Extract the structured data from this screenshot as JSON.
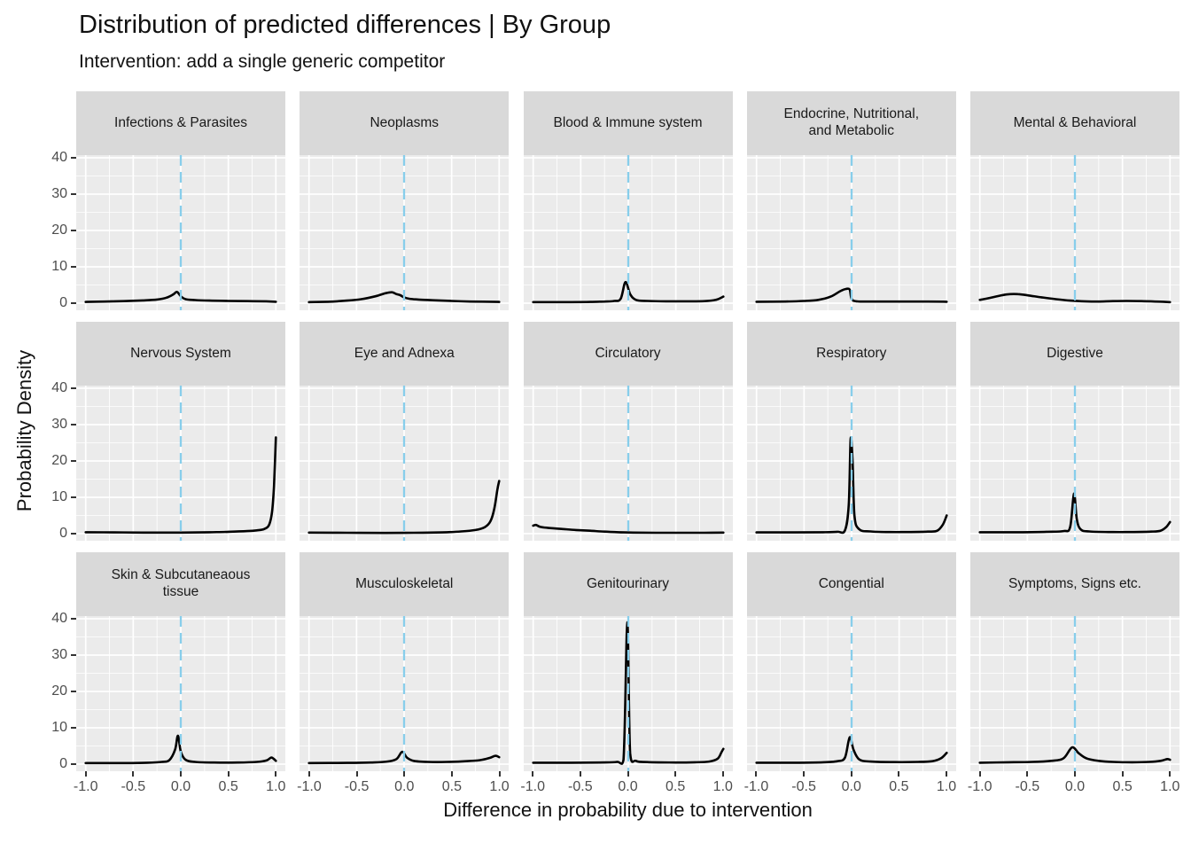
{
  "header": {
    "title": "Distribution of predicted differences | By Group",
    "subtitle": "Intervention: add a single generic competitor"
  },
  "axes": {
    "x": {
      "label": "Difference in probability due to intervention",
      "ticks": [
        -1.0,
        -0.5,
        0.0,
        0.5,
        1.0
      ],
      "tick_labels": [
        "-1.0",
        "-0.5",
        "0.0",
        "0.5",
        "1.0"
      ],
      "range": [
        -1,
        1
      ]
    },
    "y": {
      "label": "Probability Density",
      "ticks": [
        0,
        10,
        20,
        30,
        40
      ],
      "tick_labels": [
        "0",
        "10",
        "20",
        "30",
        "40"
      ],
      "range": [
        0,
        40
      ]
    }
  },
  "style": {
    "panel_bg": "#EBEBEB",
    "strip_bg": "#D9D9D9",
    "grid_color": "#FFFFFF",
    "curve_color": "#000000",
    "vline_color": "#87CEEB",
    "tick_text_color": "#4D4D4D",
    "strip_text_color": "#1A1A1A"
  },
  "chart_data": {
    "type": "line",
    "title": "Distribution of predicted differences | By Group",
    "subtitle": "Intervention: add a single generic competitor",
    "xlabel": "Difference in probability due to intervention",
    "ylabel": "Probability Density",
    "xlim": [
      -1,
      1
    ],
    "ylim": [
      0,
      40
    ],
    "grid": "on",
    "legend": "none",
    "vline_x": 0,
    "facet_layout": {
      "rows": 3,
      "cols": 5
    },
    "facets": [
      {
        "title": "Infections & Parasites",
        "points": [
          [
            -1,
            0.35
          ],
          [
            -0.8,
            0.45
          ],
          [
            -0.6,
            0.55
          ],
          [
            -0.4,
            0.75
          ],
          [
            -0.25,
            1.0
          ],
          [
            -0.15,
            1.5
          ],
          [
            -0.08,
            2.4
          ],
          [
            -0.04,
            3.1
          ],
          [
            0,
            1.9
          ],
          [
            0.05,
            1.1
          ],
          [
            0.15,
            0.85
          ],
          [
            0.3,
            0.7
          ],
          [
            0.5,
            0.6
          ],
          [
            0.7,
            0.55
          ],
          [
            0.9,
            0.5
          ],
          [
            1,
            0.4
          ]
        ]
      },
      {
        "title": "Neoplasms",
        "points": [
          [
            -1,
            0.3
          ],
          [
            -0.8,
            0.4
          ],
          [
            -0.6,
            0.7
          ],
          [
            -0.45,
            1.1
          ],
          [
            -0.3,
            1.9
          ],
          [
            -0.2,
            2.7
          ],
          [
            -0.13,
            3.0
          ],
          [
            -0.08,
            2.5
          ],
          [
            -0.04,
            2.2
          ],
          [
            0,
            1.6
          ],
          [
            0.06,
            1.2
          ],
          [
            0.15,
            1.0
          ],
          [
            0.3,
            0.8
          ],
          [
            0.5,
            0.6
          ],
          [
            0.7,
            0.45
          ],
          [
            1,
            0.35
          ]
        ]
      },
      {
        "title": "Blood & Immune system",
        "points": [
          [
            -1,
            0.3
          ],
          [
            -0.6,
            0.3
          ],
          [
            -0.4,
            0.35
          ],
          [
            -0.25,
            0.45
          ],
          [
            -0.15,
            0.6
          ],
          [
            -0.08,
            1.2
          ],
          [
            -0.03,
            5.8
          ],
          [
            0.02,
            2.5
          ],
          [
            0.08,
            0.9
          ],
          [
            0.2,
            0.6
          ],
          [
            0.4,
            0.5
          ],
          [
            0.6,
            0.5
          ],
          [
            0.8,
            0.55
          ],
          [
            0.92,
            0.9
          ],
          [
            1,
            1.8
          ]
        ]
      },
      {
        "title": "Endocrine, Nutritional,\nand Metabolic",
        "points": [
          [
            -1,
            0.4
          ],
          [
            -0.7,
            0.45
          ],
          [
            -0.5,
            0.6
          ],
          [
            -0.35,
            0.9
          ],
          [
            -0.22,
            1.8
          ],
          [
            -0.12,
            3.3
          ],
          [
            -0.06,
            3.9
          ],
          [
            -0.02,
            3.7
          ],
          [
            0,
            1.2
          ],
          [
            0.05,
            0.5
          ],
          [
            0.2,
            0.45
          ],
          [
            0.5,
            0.45
          ],
          [
            0.8,
            0.45
          ],
          [
            1,
            0.4
          ]
        ]
      },
      {
        "title": "Mental & Behavioral",
        "points": [
          [
            -1,
            0.9
          ],
          [
            -0.85,
            1.7
          ],
          [
            -0.72,
            2.4
          ],
          [
            -0.6,
            2.5
          ],
          [
            -0.48,
            2.1
          ],
          [
            -0.35,
            1.6
          ],
          [
            -0.2,
            1.1
          ],
          [
            -0.05,
            0.7
          ],
          [
            0.1,
            0.5
          ],
          [
            0.25,
            0.45
          ],
          [
            0.4,
            0.55
          ],
          [
            0.55,
            0.6
          ],
          [
            0.7,
            0.55
          ],
          [
            0.85,
            0.45
          ],
          [
            1,
            0.3
          ]
        ]
      },
      {
        "title": "Nervous System",
        "points": [
          [
            -1,
            0.4
          ],
          [
            -0.7,
            0.35
          ],
          [
            -0.4,
            0.3
          ],
          [
            0,
            0.3
          ],
          [
            0.3,
            0.4
          ],
          [
            0.5,
            0.5
          ],
          [
            0.7,
            0.7
          ],
          [
            0.8,
            0.9
          ],
          [
            0.88,
            1.3
          ],
          [
            0.93,
            2.5
          ],
          [
            0.96,
            6
          ],
          [
            0.98,
            13
          ],
          [
            1,
            26.5
          ]
        ]
      },
      {
        "title": "Eye and Adnexa",
        "points": [
          [
            -1,
            0.3
          ],
          [
            -0.6,
            0.25
          ],
          [
            -0.2,
            0.2
          ],
          [
            0.1,
            0.25
          ],
          [
            0.4,
            0.35
          ],
          [
            0.6,
            0.6
          ],
          [
            0.75,
            1.0
          ],
          [
            0.85,
            1.8
          ],
          [
            0.91,
            3.5
          ],
          [
            0.95,
            7
          ],
          [
            0.98,
            12
          ],
          [
            1,
            14.5
          ]
        ]
      },
      {
        "title": "Circulatory",
        "points": [
          [
            -1,
            2.2
          ],
          [
            -0.97,
            2.4
          ],
          [
            -0.93,
            1.9
          ],
          [
            -0.85,
            1.6
          ],
          [
            -0.7,
            1.3
          ],
          [
            -0.55,
            1.0
          ],
          [
            -0.4,
            0.8
          ],
          [
            -0.25,
            0.55
          ],
          [
            -0.1,
            0.4
          ],
          [
            0.05,
            0.3
          ],
          [
            0.3,
            0.25
          ],
          [
            0.6,
            0.25
          ],
          [
            0.8,
            0.25
          ],
          [
            1,
            0.3
          ]
        ]
      },
      {
        "title": "Respiratory",
        "points": [
          [
            -1,
            0.35
          ],
          [
            -0.6,
            0.35
          ],
          [
            -0.3,
            0.4
          ],
          [
            -0.15,
            0.5
          ],
          [
            -0.07,
            0.9
          ],
          [
            -0.03,
            8
          ],
          [
            -0.01,
            26
          ],
          [
            0.01,
            20
          ],
          [
            0.03,
            5
          ],
          [
            0.08,
            1.2
          ],
          [
            0.2,
            0.6
          ],
          [
            0.4,
            0.45
          ],
          [
            0.6,
            0.45
          ],
          [
            0.8,
            0.55
          ],
          [
            0.9,
            0.8
          ],
          [
            0.96,
            2.5
          ],
          [
            1,
            5
          ]
        ]
      },
      {
        "title": "Digestive",
        "points": [
          [
            -1,
            0.4
          ],
          [
            -0.6,
            0.4
          ],
          [
            -0.3,
            0.5
          ],
          [
            -0.12,
            0.7
          ],
          [
            -0.05,
            1.8
          ],
          [
            -0.01,
            11
          ],
          [
            0.02,
            4
          ],
          [
            0.06,
            1.2
          ],
          [
            0.15,
            0.6
          ],
          [
            0.4,
            0.45
          ],
          [
            0.6,
            0.45
          ],
          [
            0.8,
            0.55
          ],
          [
            0.9,
            0.8
          ],
          [
            0.96,
            1.8
          ],
          [
            1,
            3.2
          ]
        ]
      },
      {
        "title": "Skin & Subcutaneaous\ntissue",
        "points": [
          [
            -1,
            0.3
          ],
          [
            -0.6,
            0.3
          ],
          [
            -0.35,
            0.4
          ],
          [
            -0.2,
            0.6
          ],
          [
            -0.12,
            1.1
          ],
          [
            -0.06,
            4
          ],
          [
            -0.03,
            7.8
          ],
          [
            0,
            3.5
          ],
          [
            0.05,
            1.2
          ],
          [
            0.15,
            0.6
          ],
          [
            0.35,
            0.45
          ],
          [
            0.6,
            0.45
          ],
          [
            0.8,
            0.6
          ],
          [
            0.9,
            1.0
          ],
          [
            0.95,
            1.8
          ],
          [
            0.98,
            1.4
          ],
          [
            1,
            0.9
          ]
        ]
      },
      {
        "title": "Musculoskeletal",
        "points": [
          [
            -1,
            0.3
          ],
          [
            -0.6,
            0.35
          ],
          [
            -0.35,
            0.45
          ],
          [
            -0.18,
            0.7
          ],
          [
            -0.08,
            1.4
          ],
          [
            -0.02,
            3.4
          ],
          [
            0.03,
            1.8
          ],
          [
            0.1,
            0.9
          ],
          [
            0.25,
            0.6
          ],
          [
            0.45,
            0.6
          ],
          [
            0.65,
            0.8
          ],
          [
            0.8,
            1.1
          ],
          [
            0.9,
            1.7
          ],
          [
            0.96,
            2.3
          ],
          [
            1,
            1.9
          ]
        ]
      },
      {
        "title": "Genitourinary",
        "points": [
          [
            -1,
            0.4
          ],
          [
            -0.6,
            0.4
          ],
          [
            -0.3,
            0.45
          ],
          [
            -0.12,
            0.6
          ],
          [
            -0.05,
            1.2
          ],
          [
            -0.01,
            39
          ],
          [
            0.02,
            3
          ],
          [
            0.08,
            0.9
          ],
          [
            0.2,
            0.55
          ],
          [
            0.5,
            0.45
          ],
          [
            0.7,
            0.5
          ],
          [
            0.85,
            0.7
          ],
          [
            0.94,
            1.5
          ],
          [
            0.98,
            3.3
          ],
          [
            1,
            4.2
          ]
        ]
      },
      {
        "title": "Congential",
        "points": [
          [
            -1,
            0.4
          ],
          [
            -0.6,
            0.4
          ],
          [
            -0.3,
            0.5
          ],
          [
            -0.15,
            0.8
          ],
          [
            -0.07,
            1.8
          ],
          [
            -0.02,
            7.4
          ],
          [
            0.02,
            4
          ],
          [
            0.08,
            1.3
          ],
          [
            0.2,
            0.7
          ],
          [
            0.45,
            0.55
          ],
          [
            0.7,
            0.6
          ],
          [
            0.85,
            0.8
          ],
          [
            0.94,
            1.6
          ],
          [
            1,
            3.1
          ]
        ]
      },
      {
        "title": "Symptoms, Signs etc.",
        "points": [
          [
            -1,
            0.4
          ],
          [
            -0.7,
            0.5
          ],
          [
            -0.45,
            0.6
          ],
          [
            -0.25,
            0.9
          ],
          [
            -0.12,
            1.6
          ],
          [
            -0.03,
            4.6
          ],
          [
            0.04,
            3
          ],
          [
            0.12,
            1.6
          ],
          [
            0.25,
            0.9
          ],
          [
            0.4,
            0.6
          ],
          [
            0.6,
            0.5
          ],
          [
            0.78,
            0.6
          ],
          [
            0.9,
            0.9
          ],
          [
            0.97,
            1.4
          ],
          [
            1,
            1.2
          ]
        ]
      }
    ]
  }
}
